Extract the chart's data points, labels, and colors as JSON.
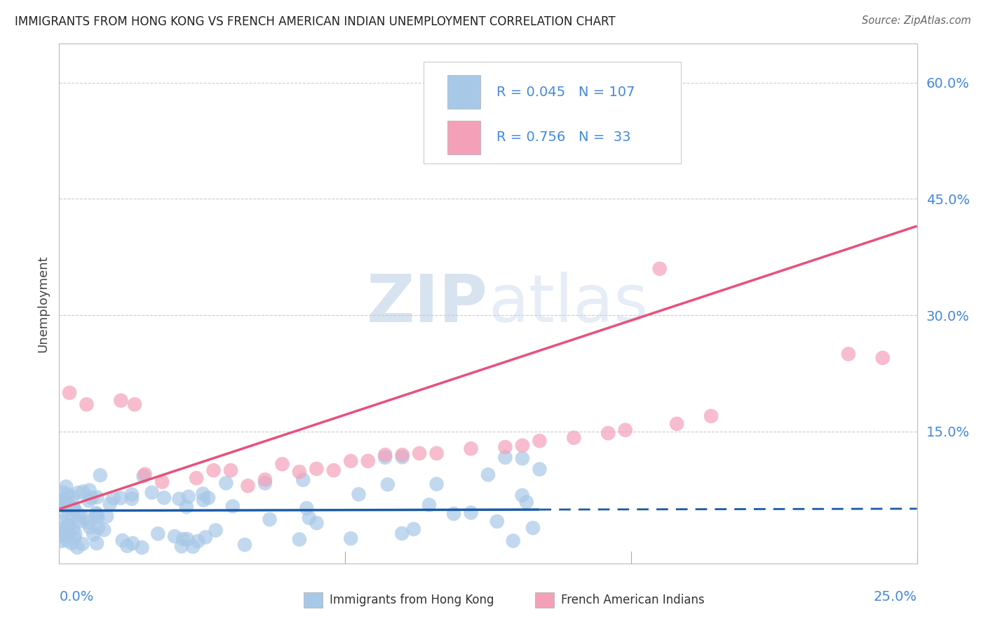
{
  "title": "IMMIGRANTS FROM HONG KONG VS FRENCH AMERICAN INDIAN UNEMPLOYMENT CORRELATION CHART",
  "source": "Source: ZipAtlas.com",
  "ylabel": "Unemployment",
  "yticks": [
    0.0,
    0.15,
    0.3,
    0.45,
    0.6
  ],
  "ytick_labels": [
    "",
    "15.0%",
    "30.0%",
    "45.0%",
    "60.0%"
  ],
  "xlim": [
    0.0,
    0.25
  ],
  "ylim": [
    -0.02,
    0.65
  ],
  "blue_R": "0.045",
  "blue_N": "107",
  "pink_R": "0.756",
  "pink_N": " 33",
  "blue_color": "#A8C8E8",
  "pink_color": "#F4A0B8",
  "blue_line_color": "#1A5BA8",
  "pink_line_color": "#E8507A",
  "label_color": "#4488DD",
  "watermark_color": "#C8D8EE",
  "legend_label_blue": "Immigrants from Hong Kong",
  "legend_label_pink": "French American Indians",
  "blue_line_solid_end": 0.14,
  "blue_line_intercept": 0.048,
  "blue_line_slope": 0.01,
  "pink_line_x0": 0.0,
  "pink_line_y0": 0.05,
  "pink_line_x1": 0.25,
  "pink_line_y1": 0.415
}
